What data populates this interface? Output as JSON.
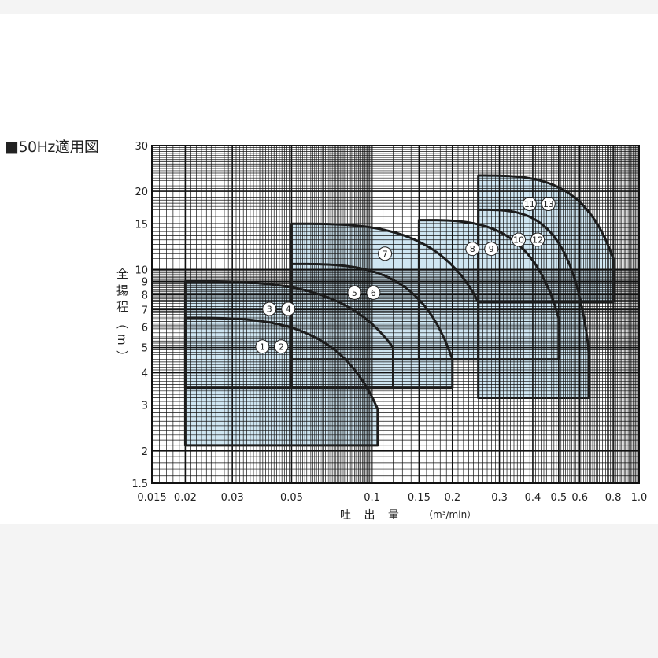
{
  "chart_data": {
    "type": "area",
    "title": "■50Hz適用図",
    "xlabel": "吐 出 量",
    "xunit": "（m³/min）",
    "ylabel": "全揚程（m）",
    "xscale": "log",
    "yscale": "log",
    "xlim": [
      0.015,
      1.0
    ],
    "ylim": [
      1.5,
      30
    ],
    "grid": true,
    "fill_color": "#cfe6f2",
    "line_color": "#1c1c1c",
    "x_ticks": [
      "0.015",
      "0.02",
      "0.03",
      "0.05",
      "0.1",
      "0.15",
      "0.2",
      "0.3",
      "0.4",
      "0.5",
      "0.6",
      "0.8",
      "1.0"
    ],
    "y_ticks": [
      "1.5",
      "2",
      "3",
      "4",
      "5",
      "6",
      "7",
      "8",
      "9",
      "10",
      "15",
      "20",
      "30"
    ],
    "regions": [
      {
        "labels": [
          "1",
          "2"
        ],
        "q_min": 0.02,
        "q_max": 0.105,
        "h_min": 2.1,
        "h_shutoff": 6.5,
        "h_end": 2.9
      },
      {
        "labels": [
          "3",
          "4"
        ],
        "q_min": 0.02,
        "q_max": 0.12,
        "h_min": 3.5,
        "h_shutoff": 9.0,
        "h_end": 5.0
      },
      {
        "labels": [
          "5",
          "6"
        ],
        "q_min": 0.05,
        "q_max": 0.2,
        "h_min": 3.5,
        "h_shutoff": 10.5,
        "h_end": 4.5
      },
      {
        "labels": [
          "7"
        ],
        "q_min": 0.05,
        "q_max": 0.25,
        "h_min": 4.5,
        "h_shutoff": 15.0,
        "h_end": 7.5
      },
      {
        "labels": [
          "8",
          "9"
        ],
        "q_min": 0.15,
        "q_max": 0.5,
        "h_min": 4.5,
        "h_shutoff": 15.5,
        "h_end": 6.5
      },
      {
        "labels": [
          "10",
          "12"
        ],
        "q_min": 0.25,
        "q_max": 0.65,
        "h_min": 3.2,
        "h_shutoff": 17.0,
        "h_end": 4.8
      },
      {
        "labels": [
          "11",
          "13"
        ],
        "q_min": 0.25,
        "q_max": 0.8,
        "h_min": 7.5,
        "h_shutoff": 23.0,
        "h_end": 11.0
      }
    ]
  }
}
